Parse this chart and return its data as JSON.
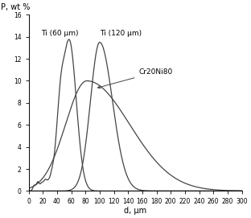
{
  "xlabel": "d, μm",
  "ylabel": "P, wt %",
  "xlim": [
    0,
    300
  ],
  "ylim": [
    0,
    16
  ],
  "xticks": [
    0,
    20,
    40,
    60,
    80,
    100,
    120,
    140,
    160,
    180,
    200,
    220,
    240,
    260,
    280,
    300
  ],
  "yticks": [
    0,
    2,
    4,
    6,
    8,
    10,
    12,
    14,
    16
  ],
  "line_color": "#444444",
  "label_ti60": "Ti (60 μm)",
  "label_ti120": "Ti (120 μm)",
  "label_cr": "Cr20Ni80",
  "figsize": [
    3.12,
    2.71
  ],
  "dpi": 100,
  "ti60_peak_x": 57,
  "ti60_peak_y": 13.7,
  "ti60_sigma": 10,
  "ti120_peak_x": 100,
  "ti120_peak_y": 13.5,
  "ti120_sigma_l": 13,
  "ti120_sigma_r": 18,
  "cr_peak_x": 82,
  "cr_peak_y": 10.0,
  "cr_sigma_l": 30,
  "cr_sigma_r": 60
}
